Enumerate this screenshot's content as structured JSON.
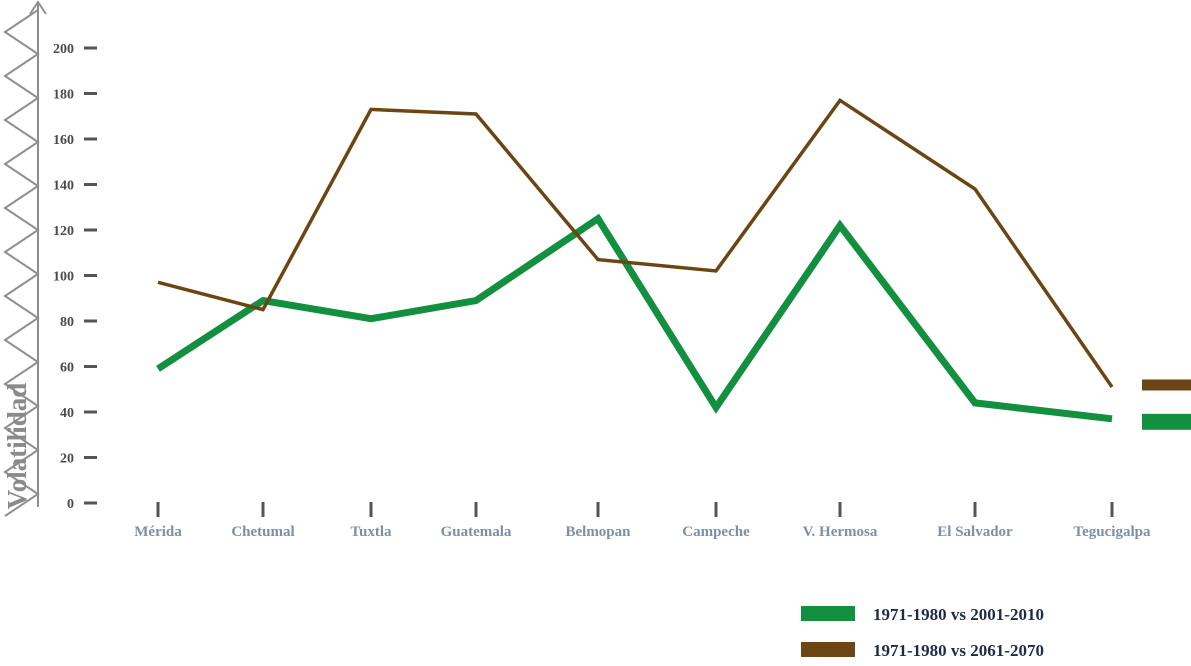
{
  "chart_data": {
    "type": "line",
    "title": "",
    "xlabel": "",
    "ylabel": "Volatilidad",
    "ylim": [
      0,
      200
    ],
    "yticks": [
      0,
      20,
      40,
      60,
      80,
      100,
      120,
      140,
      160,
      180,
      200
    ],
    "categories": [
      "Mérida",
      "Chetumal",
      "Tuxtla",
      "Guatemala",
      "Belmopan",
      "Campeche",
      "V. Hermosa",
      "El Salvador",
      "Tegucigalpa"
    ],
    "series": [
      {
        "name": "1971-1980 vs 2001-2010",
        "color": "#13903f",
        "values": [
          59,
          89,
          81,
          89,
          125,
          42,
          122,
          44,
          37
        ]
      },
      {
        "name": "1971-1980 vs 2061-2070",
        "color": "#6b4614",
        "values": [
          97,
          85,
          173,
          171,
          107,
          102,
          177,
          138,
          51
        ]
      }
    ],
    "legend": "bottom-right",
    "grid": false
  },
  "colors": {
    "axis": "#8f8f8f",
    "tick": "#555555"
  }
}
